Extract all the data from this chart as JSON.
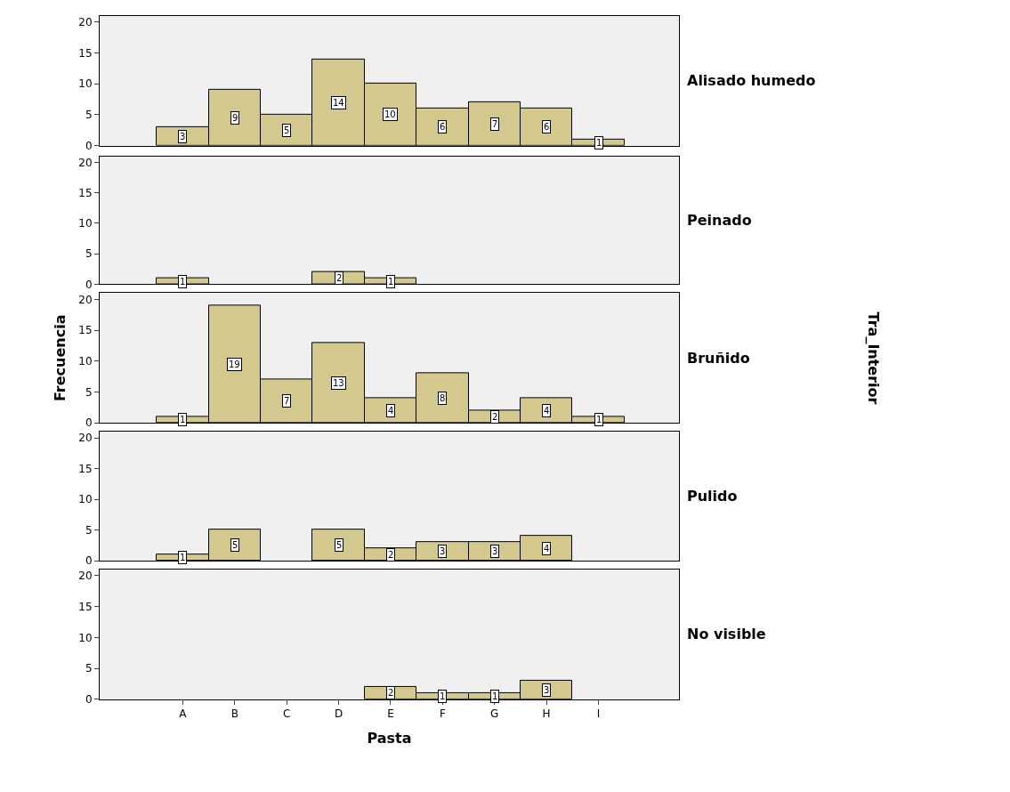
{
  "chart_data": [
    {
      "type": "bar",
      "annotations": [
        "Alisado humedo"
      ],
      "categories": [
        "A",
        "B",
        "C",
        "D",
        "E",
        "F",
        "G",
        "H",
        "I"
      ],
      "values": [
        3,
        9,
        5,
        14,
        10,
        6,
        7,
        6,
        1
      ],
      "color": "#d3c98f",
      "ylim": [
        0,
        21
      ],
      "yticks": [
        0,
        5,
        10,
        15,
        20
      ],
      "data_labels": true,
      "tick_labels": "y"
    },
    {
      "type": "bar",
      "annotations": [
        "Peinado"
      ],
      "categories": [
        "A",
        "B",
        "C",
        "D",
        "E",
        "F",
        "G",
        "H",
        "I"
      ],
      "values": [
        1,
        null,
        null,
        2,
        1,
        null,
        null,
        null,
        null
      ],
      "color": "#d3c98f",
      "ylim": [
        0,
        21
      ],
      "yticks": [
        0,
        5,
        10,
        15,
        20
      ],
      "data_labels": true,
      "tick_labels": "y"
    },
    {
      "type": "bar",
      "ylabel": "Frecuencia",
      "annotations": [
        "Bruñido",
        "Tra_Interior"
      ],
      "categories": [
        "A",
        "B",
        "C",
        "D",
        "E",
        "F",
        "G",
        "H",
        "I"
      ],
      "values": [
        1,
        19,
        7,
        13,
        4,
        8,
        2,
        4,
        1
      ],
      "color": "#d3c98f",
      "ylim": [
        0,
        21
      ],
      "yticks": [
        0,
        5,
        10,
        15,
        20
      ],
      "data_labels": true,
      "tick_labels": "y"
    },
    {
      "type": "bar",
      "annotations": [
        "Pulido"
      ],
      "categories": [
        "A",
        "B",
        "C",
        "D",
        "E",
        "F",
        "G",
        "H",
        "I"
      ],
      "values": [
        1,
        5,
        null,
        5,
        2,
        3,
        3,
        4,
        null
      ],
      "color": "#d3c98f",
      "ylim": [
        0,
        21
      ],
      "yticks": [
        0,
        5,
        10,
        15,
        20
      ],
      "data_labels": true,
      "tick_labels": "y"
    },
    {
      "type": "bar",
      "annotations": [
        "No visible"
      ],
      "xlabel": "Pasta",
      "categories": [
        "A",
        "B",
        "C",
        "D",
        "E",
        "F",
        "G",
        "H",
        "I"
      ],
      "values": [
        null,
        null,
        null,
        null,
        2,
        1,
        1,
        3,
        null
      ],
      "color": "#d3c98f",
      "ylim": [
        0,
        21
      ],
      "yticks": [
        0,
        5,
        10,
        15,
        20
      ],
      "data_labels": true
    }
  ]
}
